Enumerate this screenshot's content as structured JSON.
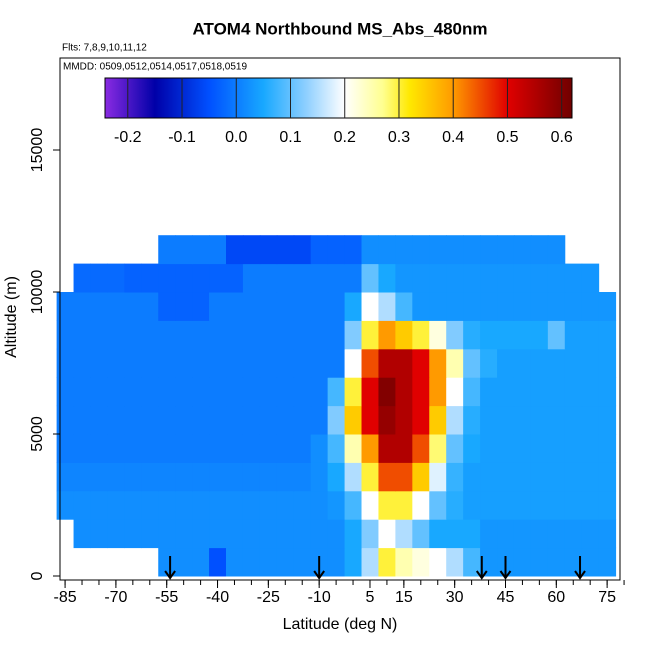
{
  "chart_data": {
    "type": "heatmap",
    "title": "ATOM4 Northbound MS_Abs_480nm",
    "subtitles": [
      "Flts: 7,8,9,10,11,12",
      "MMDD: 0509,0512,0514,0517,0518,0519"
    ],
    "xlabel": "Latitude (deg N)",
    "ylabel": "Altitude (m)",
    "xlim": [
      -86.5,
      78.8
    ],
    "ylim": [
      -141,
      18240
    ],
    "xticks": [
      -85,
      -70,
      -55,
      -40,
      -25,
      -10,
      5,
      15,
      30,
      45,
      60,
      75
    ],
    "xminorticks": [
      -85,
      -80,
      -75,
      -70,
      -65,
      -60,
      -55,
      -50,
      -45,
      -40,
      -35,
      -30,
      -25,
      -20,
      -15,
      -10,
      -5,
      0,
      5,
      10,
      15,
      20,
      25,
      30,
      35,
      40,
      45,
      50,
      55,
      60,
      65,
      70,
      75,
      80
    ],
    "yticks": [
      0,
      5000,
      10000,
      15000
    ],
    "x": [
      -85,
      -80,
      -75,
      -70,
      -65,
      -60,
      -55,
      -50,
      -45,
      -40,
      -35,
      -30,
      -25,
      -20,
      -15,
      -10,
      -5,
      0,
      5,
      10,
      15,
      20,
      25,
      30,
      35,
      40,
      45,
      50,
      55,
      60,
      65,
      70,
      75
    ],
    "y": [
      500,
      1500,
      2500,
      3500,
      4500,
      5500,
      6500,
      7500,
      8500,
      9500,
      10500,
      11500
    ],
    "z": [
      [
        null,
        null,
        null,
        null,
        null,
        null,
        0.02,
        0.02,
        0.02,
        -0.05,
        0.02,
        0.02,
        0.02,
        0.02,
        0.02,
        0.02,
        0.02,
        0.05,
        0.15,
        0.3,
        0.25,
        0.22,
        0.2,
        0.15,
        0.08,
        0.03,
        0.03,
        0.03,
        0.03,
        0.03,
        0.03,
        0.03,
        0.03
      ],
      [
        null,
        0.02,
        0.02,
        0.02,
        0.02,
        0.02,
        0.02,
        0.02,
        0.02,
        0.02,
        0.02,
        0.02,
        0.02,
        0.02,
        0.02,
        0.02,
        0.02,
        0.05,
        0.12,
        0.2,
        0.15,
        0.1,
        0.05,
        0.05,
        0.05,
        0.03,
        0.03,
        0.03,
        0.03,
        0.03,
        0.03,
        0.03,
        0.03
      ],
      [
        0.02,
        0.02,
        0.02,
        0.02,
        0.02,
        0.02,
        0.02,
        0.02,
        0.02,
        0.02,
        0.02,
        0.02,
        0.02,
        0.02,
        0.02,
        0.02,
        0.03,
        0.08,
        0.2,
        0.3,
        0.3,
        0.2,
        0.1,
        0.06,
        0.04,
        0.04,
        0.04,
        0.04,
        0.04,
        0.04,
        0.04,
        0.04,
        0.04
      ],
      [
        0.01,
        0.01,
        0.01,
        0.01,
        0.01,
        0.01,
        0.01,
        0.01,
        0.01,
        0.01,
        0.01,
        0.01,
        0.01,
        0.01,
        0.01,
        0.02,
        0.05,
        0.15,
        0.3,
        0.45,
        0.45,
        0.35,
        0.18,
        0.07,
        0.04,
        0.04,
        0.04,
        0.04,
        0.04,
        0.04,
        0.04,
        0.04,
        0.04
      ],
      [
        0,
        0,
        0,
        0,
        0,
        0,
        0,
        0,
        0,
        0,
        0,
        0,
        0,
        0,
        0,
        0.02,
        0.08,
        0.25,
        0.4,
        0.55,
        0.55,
        0.45,
        0.28,
        0.1,
        0.05,
        0.04,
        0.04,
        0.04,
        0.04,
        0.04,
        0.04,
        0.04,
        0.04
      ],
      [
        0,
        0,
        0,
        0,
        0,
        0,
        0,
        0,
        0,
        0,
        0,
        0,
        0,
        0,
        0,
        0,
        0.12,
        0.35,
        0.5,
        0.58,
        0.55,
        0.5,
        0.35,
        0.15,
        0.06,
        0.04,
        0.04,
        0.04,
        0.04,
        0.04,
        0.04,
        0.04,
        0.04
      ],
      [
        0,
        0,
        0,
        0,
        0,
        0,
        0,
        0,
        0,
        0,
        0,
        0,
        0,
        0,
        0,
        0,
        0.08,
        0.3,
        0.5,
        0.6,
        0.55,
        0.5,
        0.4,
        0.2,
        0.08,
        0.04,
        0.04,
        0.04,
        0.04,
        0.04,
        0.04,
        0.04,
        0.04
      ],
      [
        0,
        0,
        0,
        0,
        0,
        0,
        0,
        0,
        0,
        0,
        0,
        0,
        0,
        0,
        0,
        0,
        0,
        0.2,
        0.45,
        0.55,
        0.55,
        0.5,
        0.4,
        0.25,
        0.1,
        0.06,
        0.04,
        0.04,
        0.04,
        0.04,
        0.04,
        0.04,
        0.04
      ],
      [
        0,
        0,
        0,
        0,
        0,
        0,
        0,
        0,
        0,
        0,
        0,
        0,
        0,
        0,
        0,
        0,
        0,
        0.12,
        0.3,
        0.4,
        0.35,
        0.3,
        0.22,
        0.12,
        0.06,
        0.05,
        0.05,
        0.05,
        0.05,
        0.1,
        0.04,
        0.04,
        0.04
      ],
      [
        0,
        0,
        0,
        0,
        0,
        0,
        -0.03,
        -0.03,
        -0.03,
        0,
        0,
        0,
        0,
        0,
        0,
        0,
        0,
        0.05,
        0.2,
        0.15,
        0.08,
        0.03,
        0.03,
        0.03,
        0.03,
        0.03,
        0.03,
        0.03,
        0.03,
        0.03,
        0.03,
        0.03,
        0.03
      ],
      [
        null,
        -0.02,
        -0.02,
        -0.02,
        -0.03,
        -0.03,
        -0.03,
        -0.03,
        -0.03,
        -0.03,
        -0.03,
        0,
        0,
        0,
        0,
        0,
        0,
        0,
        0.1,
        0.05,
        0.03,
        0.03,
        0.03,
        0.03,
        0.03,
        0.03,
        0.03,
        0.03,
        0.03,
        0.03,
        0.03,
        0.03,
        null
      ],
      [
        null,
        null,
        null,
        null,
        null,
        null,
        0,
        0,
        0,
        0,
        -0.06,
        -0.06,
        -0.06,
        -0.06,
        -0.06,
        -0.03,
        -0.03,
        -0.03,
        0.02,
        0.02,
        0.02,
        0.02,
        0.02,
        0.02,
        0.02,
        0.02,
        0.02,
        0.02,
        0.02,
        0.02,
        null,
        null,
        null
      ]
    ],
    "colorbar_lim": [
      -0.242,
      0.619
    ],
    "colorbar_ticks": [
      -0.2,
      -0.1,
      0.0,
      0.1,
      0.2,
      0.3,
      0.4,
      0.5,
      0.6
    ],
    "colorbar_tick_labels": [
      "-0.2",
      "-0.1",
      "0.0",
      "0.1",
      "0.2",
      "0.3",
      "0.4",
      "0.5",
      "0.6"
    ],
    "colorscale": [
      [
        -0.242,
        "#8a2be2"
      ],
      [
        -0.15,
        "#0000a8"
      ],
      [
        -0.05,
        "#0050ff"
      ],
      [
        0.05,
        "#18a8ff"
      ],
      [
        0.13,
        "#90d0ff"
      ],
      [
        0.2,
        "#ffffff"
      ],
      [
        0.27,
        "#ffff90"
      ],
      [
        0.32,
        "#ffe800"
      ],
      [
        0.4,
        "#ff9a00"
      ],
      [
        0.5,
        "#e00000"
      ],
      [
        0.619,
        "#700000"
      ]
    ],
    "arrow_lats": [
      -54,
      -10,
      38,
      45,
      67
    ]
  }
}
